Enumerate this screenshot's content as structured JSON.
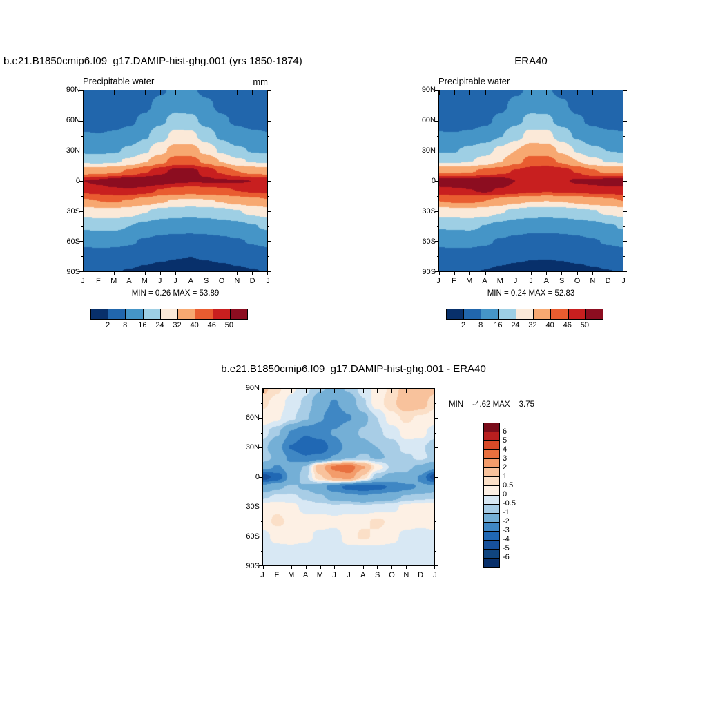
{
  "figure": {
    "background": "#ffffff",
    "titles": {
      "left": "b.e21.B1850cmip6.f09_g17.DAMIP-hist-ghg.001 (yrs 1850-1874)",
      "right": "ERA40",
      "bottom": "b.e21.B1850cmip6.f09_g17.DAMIP-hist-ghg.001 - ERA40"
    }
  },
  "chart_data": [
    {
      "type": "heatmap",
      "panel": "model",
      "variable": "Precipitable water",
      "units": "mm",
      "min_max_label": "MIN =  0.26 MAX = 53.89",
      "x": [
        "J",
        "F",
        "M",
        "A",
        "M",
        "J",
        "J",
        "A",
        "S",
        "O",
        "N",
        "D",
        "J"
      ],
      "y_ticks": [
        "90N",
        "60N",
        "30N",
        "0",
        "30S",
        "60S",
        "90S"
      ],
      "lats": [
        90,
        75,
        60,
        45,
        30,
        20,
        10,
        0,
        -10,
        -20,
        -30,
        -45,
        -60,
        -75,
        -90
      ],
      "levels": [
        2,
        8,
        16,
        24,
        32,
        40,
        46,
        50
      ],
      "colors": [
        "#08306b",
        "#2166ac",
        "#4595c7",
        "#9ecfe4",
        "#fbe9d8",
        "#f7a871",
        "#e95c30",
        "#c81f1f",
        "#8c0d20"
      ],
      "colorbar": {
        "orientation": "horizontal",
        "labels": [
          "2",
          "8",
          "16",
          "24",
          "32",
          "40",
          "46",
          "50"
        ]
      },
      "values": [
        [
          2.6,
          2.4,
          2.3,
          2.6,
          4.2,
          7.0,
          9.5,
          9.0,
          6.5,
          4.4,
          3.2,
          2.8,
          2.6
        ],
        [
          3.2,
          3.0,
          3.0,
          3.8,
          6.2,
          10.5,
          13.5,
          13.0,
          9.5,
          6.2,
          4.3,
          3.5,
          3.2
        ],
        [
          5.2,
          5.0,
          5.2,
          6.6,
          9.8,
          14.5,
          18.5,
          18.0,
          13.5,
          9.3,
          6.8,
          5.6,
          5.2
        ],
        [
          8.5,
          8.2,
          8.8,
          10.8,
          14.8,
          20.5,
          26.5,
          26.0,
          20.0,
          14.3,
          10.8,
          9.2,
          8.5
        ],
        [
          14.5,
          14.0,
          15.0,
          17.5,
          22.5,
          29.5,
          35.5,
          35.5,
          29.5,
          22.5,
          17.5,
          15.5,
          14.5
        ],
        [
          22.0,
          21.5,
          22.5,
          25.5,
          31.0,
          37.5,
          43.0,
          43.0,
          38.0,
          31.5,
          25.5,
          23.0,
          22.0
        ],
        [
          36.0,
          36.5,
          38.0,
          41.0,
          45.0,
          49.0,
          51.0,
          51.0,
          49.0,
          45.0,
          40.0,
          37.0,
          36.0
        ],
        [
          50.0,
          51.0,
          52.5,
          53.5,
          53.5,
          52.5,
          51.0,
          50.5,
          50.5,
          50.5,
          50.5,
          50.0,
          50.0
        ],
        [
          47.0,
          48.0,
          49.0,
          49.5,
          48.0,
          45.5,
          43.5,
          43.0,
          43.5,
          44.5,
          46.0,
          46.5,
          47.0
        ],
        [
          39.0,
          40.0,
          40.5,
          39.5,
          36.5,
          33.0,
          31.0,
          30.5,
          31.0,
          32.5,
          35.0,
          37.0,
          39.0
        ],
        [
          28.0,
          29.0,
          29.5,
          27.5,
          24.5,
          21.5,
          20.0,
          19.5,
          20.0,
          21.5,
          23.5,
          26.0,
          28.0
        ],
        [
          17.0,
          17.5,
          17.5,
          16.0,
          13.5,
          11.5,
          10.5,
          10.5,
          11.0,
          12.0,
          13.5,
          15.5,
          17.0
        ],
        [
          9.5,
          10.0,
          9.8,
          8.8,
          7.2,
          6.0,
          5.5,
          5.3,
          5.6,
          6.3,
          7.3,
          8.5,
          9.5
        ],
        [
          4.5,
          4.8,
          4.6,
          3.9,
          3.0,
          2.4,
          2.1,
          2.0,
          2.2,
          2.6,
          3.2,
          3.9,
          4.5
        ],
        [
          2.2,
          2.4,
          2.2,
          1.8,
          1.3,
          1.0,
          0.8,
          0.7,
          0.8,
          1.0,
          1.4,
          1.8,
          2.2
        ]
      ]
    },
    {
      "type": "heatmap",
      "panel": "era40",
      "variable": "Precipitable water",
      "units": "",
      "min_max_label": "MIN =  0.24 MAX = 52.83",
      "x": [
        "J",
        "F",
        "M",
        "A",
        "M",
        "J",
        "J",
        "A",
        "S",
        "O",
        "N",
        "D",
        "J"
      ],
      "y_ticks": [
        "90N",
        "60N",
        "30N",
        "0",
        "30S",
        "60S",
        "90S"
      ],
      "lats": [
        90,
        75,
        60,
        45,
        30,
        20,
        10,
        0,
        -10,
        -20,
        -30,
        -45,
        -60,
        -75,
        -90
      ],
      "levels": [
        2,
        8,
        16,
        24,
        32,
        40,
        46,
        50
      ],
      "colors": [
        "#08306b",
        "#2166ac",
        "#4595c7",
        "#9ecfe4",
        "#fbe9d8",
        "#f7a871",
        "#e95c30",
        "#c81f1f",
        "#8c0d20"
      ],
      "colorbar": {
        "orientation": "horizontal",
        "labels": [
          "2",
          "8",
          "16",
          "24",
          "32",
          "40",
          "46",
          "50"
        ]
      },
      "values": [
        [
          2.5,
          2.3,
          2.2,
          2.5,
          4.0,
          6.8,
          9.2,
          8.8,
          6.3,
          4.2,
          3.1,
          2.7,
          2.5
        ],
        [
          3.1,
          2.9,
          2.9,
          3.7,
          6.0,
          10.2,
          13.2,
          12.8,
          9.2,
          6.0,
          4.2,
          3.4,
          3.1
        ],
        [
          5.1,
          4.9,
          5.1,
          6.5,
          9.6,
          14.2,
          18.2,
          17.8,
          13.2,
          9.1,
          6.6,
          5.5,
          5.1
        ],
        [
          8.6,
          8.4,
          9.2,
          11.5,
          15.5,
          21.0,
          27.0,
          26.5,
          20.5,
          14.6,
          10.9,
          9.3,
          8.6
        ],
        [
          15.3,
          15.5,
          18.0,
          21.3,
          26.0,
          32.0,
          37.0,
          36.7,
          30.5,
          23.3,
          17.8,
          15.9,
          15.3
        ],
        [
          22.5,
          22.0,
          23.5,
          26.5,
          31.5,
          37.5,
          42.5,
          42.8,
          38.5,
          32.0,
          26.0,
          23.3,
          22.5
        ],
        [
          37.5,
          38.0,
          39.0,
          41.5,
          44.0,
          46.5,
          48.0,
          49.0,
          48.5,
          45.5,
          40.8,
          38.0,
          37.5
        ],
        [
          52.5,
          52.8,
          52.5,
          52.5,
          52.0,
          50.0,
          48.0,
          48.5,
          49.5,
          50.5,
          51.0,
          52.0,
          52.5
        ],
        [
          48.5,
          49.0,
          49.8,
          50.5,
          49.5,
          48.5,
          47.0,
          46.5,
          46.8,
          47.3,
          48.2,
          48.3,
          48.5
        ],
        [
          40.0,
          40.8,
          41.0,
          40.0,
          37.0,
          33.8,
          32.2,
          32.0,
          32.2,
          33.5,
          35.8,
          37.8,
          40.0
        ],
        [
          27.8,
          28.6,
          29.2,
          27.6,
          24.8,
          21.8,
          20.2,
          19.8,
          20.2,
          21.6,
          23.4,
          25.7,
          27.8
        ],
        [
          16.6,
          17.0,
          17.2,
          15.8,
          13.3,
          11.3,
          10.2,
          10.1,
          10.5,
          11.7,
          13.2,
          15.2,
          16.6
        ],
        [
          9.6,
          10.1,
          9.9,
          8.9,
          7.3,
          6.1,
          5.3,
          5.1,
          5.4,
          6.2,
          7.4,
          8.6,
          9.6
        ],
        [
          4.6,
          4.9,
          4.7,
          4.0,
          3.1,
          2.5,
          2.2,
          2.1,
          2.3,
          2.7,
          3.3,
          4.0,
          4.6
        ],
        [
          2.3,
          2.5,
          2.3,
          1.9,
          1.4,
          1.1,
          0.9,
          0.8,
          0.9,
          1.1,
          1.5,
          1.9,
          2.3
        ]
      ]
    },
    {
      "type": "heatmap",
      "panel": "difference",
      "variable": "",
      "units": "",
      "min_max_label": "MIN = -4.62 MAX =  3.75",
      "x": [
        "J",
        "F",
        "M",
        "A",
        "M",
        "J",
        "J",
        "A",
        "S",
        "O",
        "N",
        "D",
        "J"
      ],
      "y_ticks": [
        "90N",
        "60N",
        "30N",
        "0",
        "30S",
        "60S",
        "90S"
      ],
      "lats": [
        90,
        75,
        60,
        45,
        30,
        20,
        10,
        0,
        -10,
        -20,
        -30,
        -45,
        -60,
        -75,
        -90
      ],
      "levels": [
        -6,
        -5,
        -4,
        -3,
        -2,
        -1,
        -0.5,
        0,
        0.5,
        1,
        2,
        3,
        4,
        5,
        6
      ],
      "colors": [
        "#08306b",
        "#10457f",
        "#17519b",
        "#2068b4",
        "#3f87c4",
        "#74afd6",
        "#a8cde6",
        "#d8e8f4",
        "#fdf0e4",
        "#fbdfc7",
        "#f8c29c",
        "#f39c6b",
        "#e8703f",
        "#d94a28",
        "#b81f1f",
        "#7a0c1a"
      ],
      "colorbar": {
        "orientation": "vertical",
        "labels": [
          "6",
          "5",
          "4",
          "3",
          "2",
          "1",
          "0.5",
          "0",
          "-0.5",
          "-1",
          "-2",
          "-3",
          "-4",
          "-5",
          "-6"
        ]
      },
      "values": [
        [
          1.2,
          0.6,
          0.1,
          -0.4,
          -0.9,
          -1.3,
          -0.9,
          -0.3,
          0.2,
          0.6,
          1.4,
          1.7,
          1.2
        ],
        [
          0.6,
          0.3,
          -0.2,
          -0.6,
          -1.6,
          -2.1,
          -1.5,
          -0.6,
          0.3,
          0.8,
          1.6,
          1.4,
          0.6
        ],
        [
          0.3,
          0.1,
          -0.4,
          -0.9,
          -1.9,
          -2.6,
          -2.1,
          -1.2,
          -0.5,
          0.3,
          0.6,
          0.4,
          0.3
        ],
        [
          -0.3,
          -0.9,
          -2.1,
          -2.9,
          -2.6,
          -1.9,
          -1.3,
          -0.9,
          -0.6,
          -0.3,
          0.2,
          0.2,
          -0.3
        ],
        [
          -0.8,
          -1.6,
          -3.1,
          -3.9,
          -3.6,
          -2.6,
          -1.6,
          -1.2,
          -1.0,
          -0.8,
          -0.3,
          -0.4,
          -0.8
        ],
        [
          -0.6,
          -1.2,
          -2.3,
          -2.9,
          -2.7,
          -1.9,
          -1.1,
          -0.9,
          -1.1,
          -0.9,
          -0.6,
          -0.4,
          -0.6
        ],
        [
          -1.6,
          -2.1,
          -1.6,
          -0.9,
          1.6,
          3.3,
          3.7,
          2.1,
          0.3,
          -0.6,
          -0.9,
          -1.1,
          -1.6
        ],
        [
          -4.6,
          -3.6,
          -1.6,
          -0.6,
          0.9,
          2.1,
          2.6,
          0.9,
          -0.9,
          -1.3,
          -1.1,
          -2.1,
          -4.6
        ],
        [
          -1.6,
          -1.1,
          -0.9,
          -1.1,
          -1.6,
          -2.6,
          -3.3,
          -3.6,
          -3.3,
          -2.9,
          -2.3,
          -1.9,
          -1.6
        ],
        [
          -0.6,
          -0.4,
          -0.4,
          -0.6,
          -0.9,
          -1.3,
          -1.6,
          -1.9,
          -1.6,
          -1.3,
          -0.9,
          -0.7,
          -0.6
        ],
        [
          0.3,
          0.4,
          0.2,
          -0.2,
          -0.3,
          -0.4,
          -0.3,
          -0.4,
          -0.3,
          -0.2,
          0.2,
          0.3,
          0.3
        ],
        [
          0.3,
          0.6,
          0.4,
          0.2,
          0.3,
          0.2,
          0.3,
          0.4,
          0.6,
          0.4,
          0.3,
          0.2,
          0.3
        ],
        [
          -0.2,
          0.2,
          0.3,
          0.2,
          -0.2,
          -0.3,
          0.3,
          0.6,
          0.4,
          0.2,
          -0.2,
          -0.3,
          -0.2
        ],
        [
          -0.3,
          -0.2,
          -0.2,
          -0.3,
          -0.3,
          -0.2,
          -0.2,
          -0.3,
          -0.2,
          -0.2,
          -0.3,
          -0.3,
          -0.3
        ],
        [
          -0.3,
          -0.3,
          -0.2,
          -0.2,
          -0.3,
          -0.3,
          -0.2,
          -0.2,
          -0.3,
          -0.3,
          -0.2,
          -0.2,
          -0.3
        ]
      ]
    }
  ]
}
